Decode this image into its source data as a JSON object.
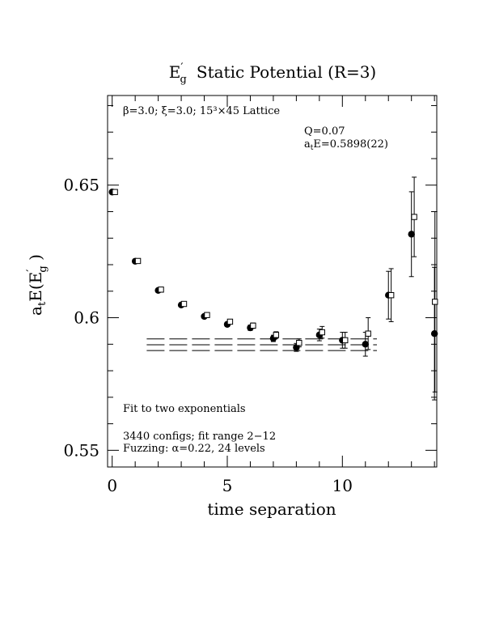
{
  "chart_data": {
    "type": "scatter",
    "title": "E′g  Static Potential (R=3)",
    "title_main": "E",
    "title_prime": "′",
    "title_sub": "g",
    "title_rest": "Static Potential (R=3)",
    "subtitle": "β=3.0; ξ=3.0; 15³×45 Lattice",
    "xlabel": "time separation",
    "ylabel": "aₜE(E′g )",
    "ylabel_parts": {
      "a": "a",
      "t": "t",
      "e": "E(E",
      "prime": "′",
      "g": "g",
      "close": " )"
    },
    "xlim": [
      -0.2,
      14.1
    ],
    "ylim": [
      0.5437,
      0.6838
    ],
    "x_ticks": [
      0,
      5,
      10
    ],
    "y_ticks": [
      0.55,
      0.6,
      0.65
    ],
    "x_tick_labels": [
      "0",
      "5",
      "10"
    ],
    "y_tick_labels": [
      "0.55",
      "0.6",
      "0.65"
    ],
    "grid": false,
    "annotations": {
      "q_value": "Q=0.07",
      "energy_label": "aₜE=0.5898(22)",
      "energy_a": "a",
      "energy_t": "t",
      "energy_rest": "E=0.5898(22)",
      "fit_method": "Fit to two exponentials",
      "configs": "3440 configs; fit range 2−12",
      "fuzzing": "Fuzzing: α=0.22, 24 levels"
    },
    "fit": {
      "x_range": [
        1.5,
        11.5
      ],
      "central": 0.5898,
      "error": 0.0022
    },
    "series": [
      {
        "marker": "filled-circle",
        "points": [
          {
            "x": 0,
            "y": 0.6474,
            "err": 0.0004
          },
          {
            "x": 1,
            "y": 0.6213,
            "err": 0.0004
          },
          {
            "x": 2,
            "y": 0.6103,
            "err": 0.0005
          },
          {
            "x": 3,
            "y": 0.6048,
            "err": 0.0006
          },
          {
            "x": 4,
            "y": 0.6005,
            "err": 0.0007
          },
          {
            "x": 5,
            "y": 0.5975,
            "err": 0.0008
          },
          {
            "x": 6,
            "y": 0.5962,
            "err": 0.001
          },
          {
            "x": 7,
            "y": 0.5922,
            "err": 0.0012
          },
          {
            "x": 8,
            "y": 0.5888,
            "err": 0.0015
          },
          {
            "x": 9,
            "y": 0.5935,
            "err": 0.0022
          },
          {
            "x": 10,
            "y": 0.5915,
            "err": 0.003
          },
          {
            "x": 11,
            "y": 0.59,
            "err": 0.0045
          },
          {
            "x": 12,
            "y": 0.6085,
            "err": 0.009
          },
          {
            "x": 13,
            "y": 0.6315,
            "err": 0.016
          },
          {
            "x": 14,
            "y": 0.594,
            "err": 0.025
          }
        ]
      },
      {
        "marker": "open-square",
        "points": [
          {
            "x": 0.12,
            "y": 0.6474,
            "err": 0.0004
          },
          {
            "x": 1.12,
            "y": 0.6214,
            "err": 0.0004
          },
          {
            "x": 2.12,
            "y": 0.6106,
            "err": 0.0005
          },
          {
            "x": 3.12,
            "y": 0.6052,
            "err": 0.0006
          },
          {
            "x": 4.12,
            "y": 0.601,
            "err": 0.0007
          },
          {
            "x": 5.12,
            "y": 0.5985,
            "err": 0.0008
          },
          {
            "x": 6.12,
            "y": 0.597,
            "err": 0.001
          },
          {
            "x": 7.12,
            "y": 0.5935,
            "err": 0.0012
          },
          {
            "x": 8.12,
            "y": 0.5905,
            "err": 0.0015
          },
          {
            "x": 9.12,
            "y": 0.5945,
            "err": 0.0022
          },
          {
            "x": 10.12,
            "y": 0.5915,
            "err": 0.003
          },
          {
            "x": 11.12,
            "y": 0.594,
            "err": 0.006
          },
          {
            "x": 12.12,
            "y": 0.6085,
            "err": 0.01
          },
          {
            "x": 13.12,
            "y": 0.638,
            "err": 0.015
          },
          {
            "x": 14.02,
            "y": 0.606,
            "err": 0.034
          }
        ]
      }
    ]
  }
}
